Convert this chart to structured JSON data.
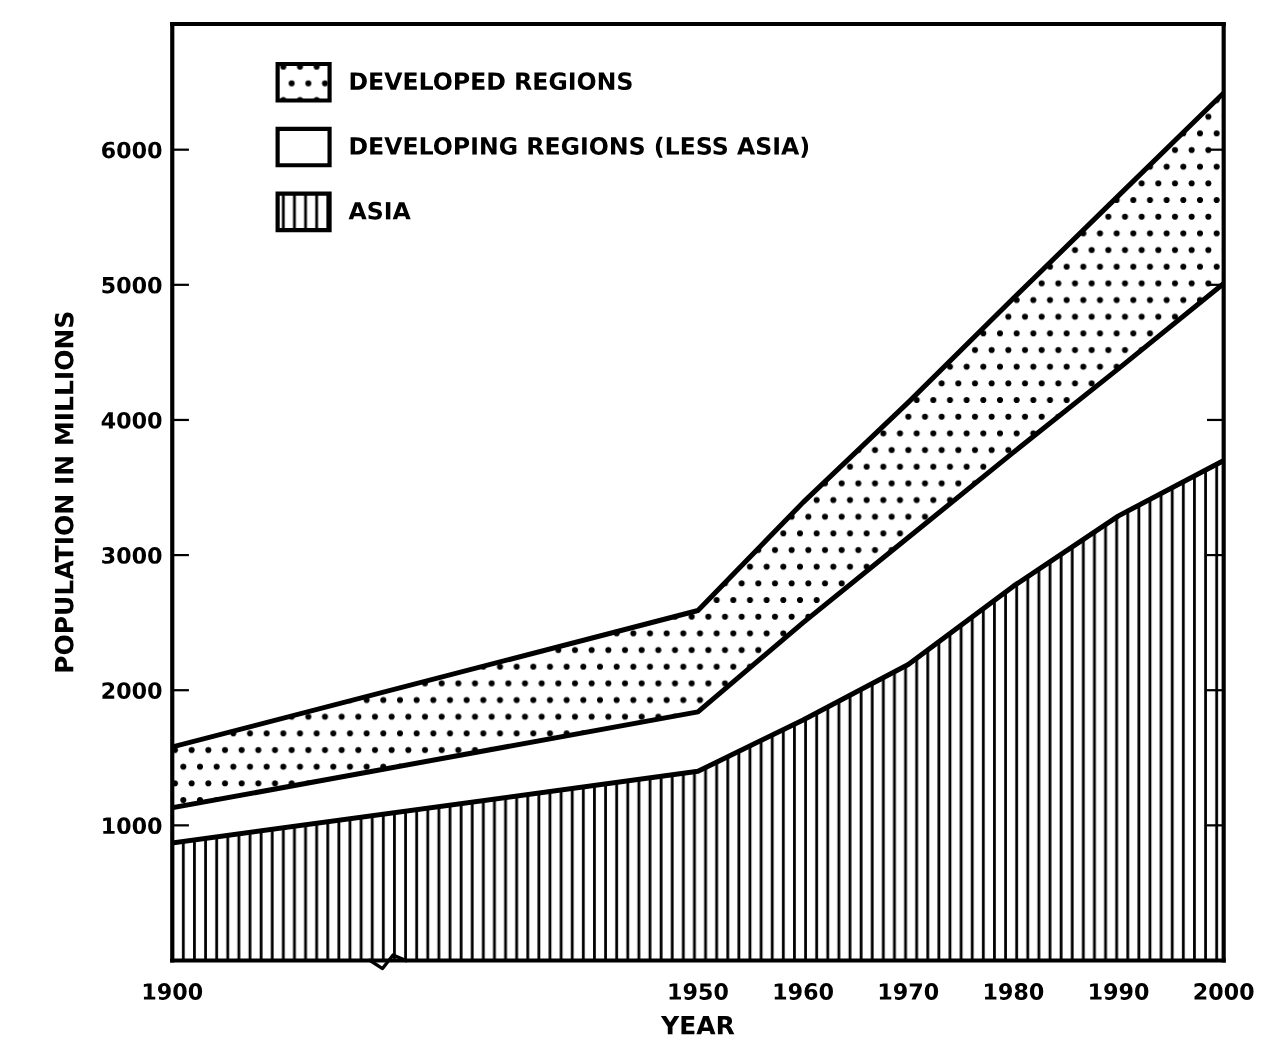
{
  "chart_data": {
    "type": "area",
    "stacked": true,
    "xlabel": "YEAR",
    "ylabel": "POPULATION IN MILLIONS",
    "x": [
      1900,
      1950,
      1960,
      1970,
      1980,
      1990,
      2000
    ],
    "series": [
      {
        "name": "ASIA",
        "color": "#ffffff",
        "values": [
          870,
          1400,
          1780,
          2190,
          2770,
          3290,
          3700
        ]
      },
      {
        "name": "DEVELOPING REGIONS (LESS ASIA)",
        "color": "#ffffff",
        "values": [
          260,
          440,
          720,
          940,
          990,
          1090,
          1310
        ]
      },
      {
        "name": "DEVELOPED REGIONS",
        "color": "#ffffff",
        "values": [
          450,
          750,
          890,
          1000,
          1140,
          1280,
          1410
        ]
      }
    ],
    "xlim": [
      1900,
      2000
    ],
    "xticks": [
      1900,
      1950,
      1960,
      1970,
      1980,
      1990,
      2000
    ],
    "ylim": [
      0,
      6930
    ],
    "yticks": [
      1000,
      2000,
      3000,
      4000,
      5000,
      6000
    ],
    "legend": "top left",
    "grid": false
  }
}
